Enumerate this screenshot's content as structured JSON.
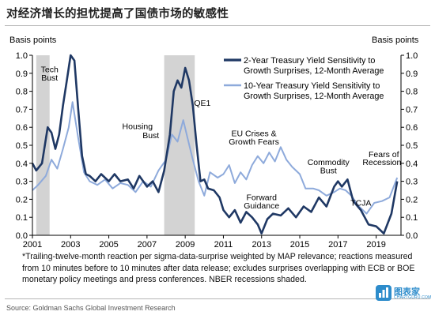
{
  "header": {
    "title": "对经济增长的担忧提高了国债市场的敏感性"
  },
  "footnote": "*Trailing-twelve-month reaction per sigma-data-surprise weighted by MAP relevance; reactions measured from 10 minutes before to 10 minutes after  data release; excludes surprises overlapping with ECB or BOE monetary policy meetings and press conferences. NBER recessions shaded.",
  "source": "Source: Goldman Sachs Global Investment Research",
  "logo": {
    "text": "图表家",
    "sub": "CHARTGURU.COM",
    "icon": "chart-logo-icon",
    "color": "#2d8ccb"
  },
  "chart_data": {
    "type": "line",
    "ylabel_left": "Basis points",
    "ylabel_right": "Basis points",
    "ylim": [
      0,
      1.0
    ],
    "yticks": [
      "0.0",
      "0.1",
      "0.2",
      "0.3",
      "0.4",
      "0.5",
      "0.6",
      "0.7",
      "0.8",
      "0.9",
      "1.0"
    ],
    "xlim": [
      2001,
      2020.3
    ],
    "xticks": [
      "2001",
      "2003",
      "2005",
      "2007",
      "2009",
      "2011",
      "2013",
      "2015",
      "2017",
      "2019"
    ],
    "grid": false,
    "legend_position": "top-right",
    "recessions": [
      [
        2001.2,
        2001.9
      ],
      [
        2007.9,
        2009.5
      ]
    ],
    "colors": {
      "recession": "#d3d3d3",
      "axis": "#000000"
    },
    "series": [
      {
        "name": "2-Year Treasury Yield Sensitivity to Growth Surprises, 12-Month Average",
        "color": "#1f3864",
        "width": 2.6,
        "x": [
          2001.0,
          2001.2,
          2001.5,
          2001.8,
          2002.0,
          2002.2,
          2002.4,
          2002.6,
          2002.8,
          2003.0,
          2003.2,
          2003.4,
          2003.6,
          2003.8,
          2004.0,
          2004.3,
          2004.6,
          2005.0,
          2005.3,
          2005.6,
          2006.0,
          2006.3,
          2006.6,
          2007.0,
          2007.3,
          2007.6,
          2007.9,
          2008.2,
          2008.4,
          2008.6,
          2008.8,
          2009.0,
          2009.2,
          2009.4,
          2009.6,
          2009.8,
          2010.0,
          2010.2,
          2010.5,
          2010.8,
          2011.0,
          2011.3,
          2011.6,
          2011.9,
          2012.2,
          2012.5,
          2012.8,
          2013.0,
          2013.3,
          2013.6,
          2014.0,
          2014.4,
          2014.8,
          2015.2,
          2015.6,
          2016.0,
          2016.4,
          2016.8,
          2017.0,
          2017.2,
          2017.5,
          2017.8,
          2018.2,
          2018.6,
          2019.0,
          2019.4,
          2019.8,
          2020.1
        ],
        "y": [
          0.4,
          0.36,
          0.4,
          0.6,
          0.57,
          0.48,
          0.56,
          0.72,
          0.86,
          1.0,
          0.97,
          0.7,
          0.44,
          0.34,
          0.33,
          0.3,
          0.34,
          0.3,
          0.34,
          0.3,
          0.31,
          0.26,
          0.33,
          0.27,
          0.3,
          0.24,
          0.36,
          0.56,
          0.8,
          0.86,
          0.82,
          0.93,
          0.86,
          0.72,
          0.5,
          0.3,
          0.31,
          0.26,
          0.25,
          0.21,
          0.14,
          0.1,
          0.14,
          0.07,
          0.13,
          0.1,
          0.06,
          0.01,
          0.09,
          0.12,
          0.11,
          0.15,
          0.1,
          0.16,
          0.13,
          0.21,
          0.16,
          0.27,
          0.3,
          0.27,
          0.31,
          0.19,
          0.14,
          0.06,
          0.05,
          0.01,
          0.12,
          0.3
        ]
      },
      {
        "name": "10-Year Treasury Yield Sensitivity to Growth Surprises, 12-Month Average",
        "color": "#8eaadb",
        "width": 2.0,
        "x": [
          2001.0,
          2001.3,
          2001.7,
          2002.0,
          2002.3,
          2002.6,
          2002.9,
          2003.1,
          2003.4,
          2003.7,
          2004.0,
          2004.4,
          2004.8,
          2005.2,
          2005.6,
          2006.0,
          2006.4,
          2006.8,
          2007.2,
          2007.6,
          2008.0,
          2008.3,
          2008.6,
          2008.9,
          2009.1,
          2009.4,
          2009.7,
          2010.0,
          2010.3,
          2010.7,
          2011.0,
          2011.3,
          2011.6,
          2011.9,
          2012.2,
          2012.5,
          2012.8,
          2013.1,
          2013.4,
          2013.7,
          2014.0,
          2014.3,
          2014.6,
          2015.0,
          2015.3,
          2015.7,
          2016.0,
          2016.4,
          2016.8,
          2017.1,
          2017.4,
          2017.7,
          2018.1,
          2018.5,
          2018.9,
          2019.3,
          2019.7,
          2020.1
        ],
        "y": [
          0.25,
          0.28,
          0.33,
          0.42,
          0.37,
          0.48,
          0.6,
          0.74,
          0.54,
          0.35,
          0.3,
          0.28,
          0.31,
          0.26,
          0.29,
          0.28,
          0.24,
          0.3,
          0.27,
          0.36,
          0.42,
          0.56,
          0.52,
          0.64,
          0.55,
          0.42,
          0.3,
          0.22,
          0.35,
          0.32,
          0.34,
          0.39,
          0.29,
          0.35,
          0.31,
          0.39,
          0.44,
          0.4,
          0.46,
          0.41,
          0.49,
          0.42,
          0.38,
          0.34,
          0.26,
          0.26,
          0.25,
          0.22,
          0.24,
          0.26,
          0.25,
          0.22,
          0.16,
          0.12,
          0.18,
          0.19,
          0.21,
          0.32
        ]
      }
    ],
    "annotations": [
      {
        "text": "Tech",
        "x": 2001.9,
        "y": 0.905
      },
      {
        "text": "Bust",
        "x": 2001.9,
        "y": 0.86
      },
      {
        "text": "QE1",
        "x": 2009.9,
        "y": 0.72
      },
      {
        "text": "Housing",
        "x": 2006.5,
        "y": 0.59
      },
      {
        "text": "Bust",
        "x": 2007.2,
        "y": 0.54
      },
      {
        "text": "EU Crises &",
        "x": 2012.6,
        "y": 0.55
      },
      {
        "text": "Growth Fears",
        "x": 2012.6,
        "y": 0.505
      },
      {
        "text": "Forward",
        "x": 2013.0,
        "y": 0.195
      },
      {
        "text": "Guidance",
        "x": 2013.0,
        "y": 0.15
      },
      {
        "text": "Commodity",
        "x": 2016.5,
        "y": 0.39
      },
      {
        "text": "Bust",
        "x": 2016.5,
        "y": 0.345
      },
      {
        "text": "TCJA",
        "x": 2018.2,
        "y": 0.165
      },
      {
        "text": "Fears of",
        "x": 2019.4,
        "y": 0.435
      },
      {
        "text": "Recession",
        "x": 2019.3,
        "y": 0.39
      }
    ]
  }
}
